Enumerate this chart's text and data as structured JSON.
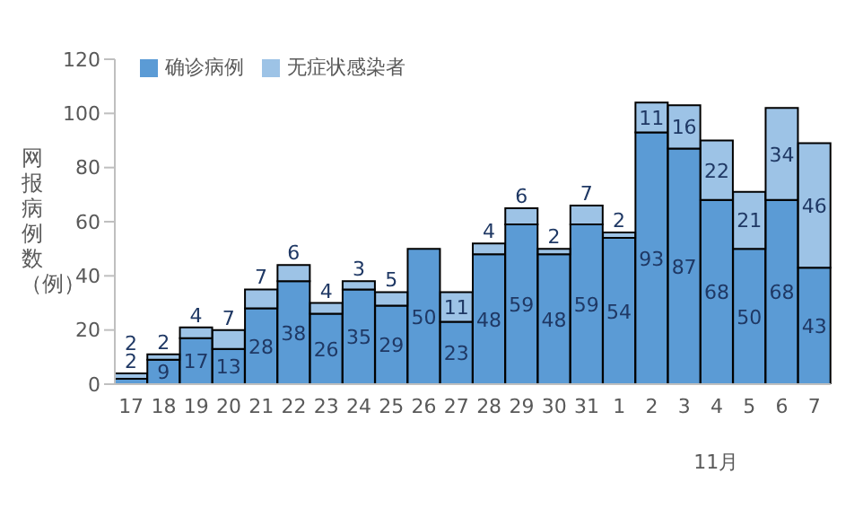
{
  "chart_data": {
    "type": "bar",
    "stacked": true,
    "ylabel": "网报病例数（例）",
    "categories": [
      "17",
      "18",
      "19",
      "20",
      "21",
      "22",
      "23",
      "24",
      "25",
      "26",
      "27",
      "28",
      "29",
      "30",
      "31",
      "1",
      "2",
      "3",
      "4",
      "5",
      "6",
      "7"
    ],
    "series": [
      {
        "name": "确诊病例",
        "color": "#5b9bd5",
        "values": [
          2,
          9,
          17,
          13,
          28,
          38,
          26,
          35,
          29,
          50,
          23,
          48,
          59,
          48,
          59,
          54,
          93,
          87,
          68,
          50,
          68,
          43
        ],
        "value_labels": [
          "2",
          "9",
          "17",
          "13",
          "28",
          "38",
          "26",
          "35",
          "29",
          "50",
          "23",
          "48",
          "59",
          "48",
          "59",
          "54",
          "93",
          "87",
          "68",
          "50",
          "68",
          "43"
        ]
      },
      {
        "name": "无症状感染者",
        "color": "#9dc3e6",
        "values": [
          2,
          2,
          4,
          7,
          7,
          6,
          4,
          3,
          5,
          0,
          11,
          4,
          6,
          2,
          7,
          2,
          11,
          16,
          22,
          21,
          34,
          46
        ],
        "value_labels": [
          "2",
          "2",
          "4",
          "7",
          "7",
          "6",
          "4",
          "3",
          "5",
          null,
          "11",
          "4",
          "6",
          "2",
          "7",
          "2",
          "11",
          "16",
          "22",
          "21",
          "34",
          "46"
        ]
      }
    ],
    "ylim": [
      0,
      120
    ],
    "yticks": [
      0,
      20,
      40,
      60,
      80,
      100,
      120
    ],
    "grid": false,
    "legend": "top left",
    "annotations": [
      "11月"
    ]
  }
}
